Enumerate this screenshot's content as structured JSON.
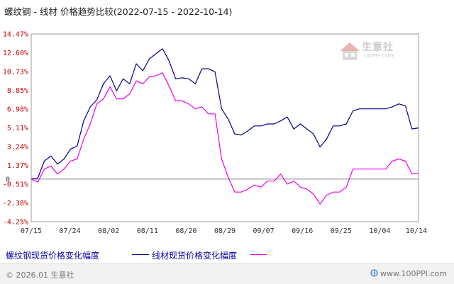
{
  "title": "螺纹钢 - 线材 价格趋势比较(2022-07-15 - 2022-10-14)",
  "watermark": {
    "text": "生意社",
    "url": "100PPI.COM"
  },
  "footer": {
    "copyright": "© 2026.01 生意社",
    "site": "www.100PPI.com"
  },
  "colors": {
    "series1": "#00008b",
    "series2": "#ee00ee",
    "axis_label": "#cc0000",
    "grid": "#c8c8c8",
    "zero": "#888888"
  },
  "chart_data": {
    "type": "line",
    "x": [
      "07/15",
      "07/18",
      "07/19",
      "07/20",
      "07/21",
      "07/22",
      "07/25",
      "07/26",
      "07/27",
      "07/28",
      "07/29",
      "08/01",
      "08/02",
      "08/03",
      "08/04",
      "08/05",
      "08/08",
      "08/09",
      "08/10",
      "08/11",
      "08/12",
      "08/15",
      "08/16",
      "08/17",
      "08/18",
      "08/19",
      "08/22",
      "08/23",
      "08/24",
      "08/25",
      "08/26",
      "08/29",
      "08/30",
      "08/31",
      "09/01",
      "09/02",
      "09/05",
      "09/06",
      "09/07",
      "09/08",
      "09/09",
      "09/13",
      "09/14",
      "09/15",
      "09/16",
      "09/19",
      "09/20",
      "09/21",
      "09/22",
      "09/23",
      "09/26",
      "09/27",
      "09/28",
      "09/29",
      "09/30",
      "10/10",
      "10/11",
      "10/12",
      "10/13",
      "10/14"
    ],
    "series": [
      {
        "name": "螺纹钢现货价格变化幅度",
        "color": "#00008b",
        "values": [
          0,
          0.1,
          1.8,
          2.3,
          1.5,
          2.0,
          3.0,
          3.3,
          5.8,
          7.2,
          7.9,
          9.5,
          10.3,
          8.8,
          10.0,
          9.5,
          11.5,
          10.8,
          12.0,
          12.5,
          13.0,
          11.8,
          10.0,
          10.1,
          10.0,
          9.5,
          11.0,
          11.0,
          10.7,
          7.0,
          6.0,
          4.5,
          4.4,
          4.8,
          5.3,
          5.3,
          5.5,
          5.5,
          5.8,
          6.2,
          5.0,
          5.5,
          5.0,
          4.5,
          3.2,
          4.0,
          5.3,
          5.3,
          5.5,
          6.8,
          7.0,
          7.0,
          7.0,
          7.0,
          7.0,
          7.2,
          7.5,
          7.3,
          5.0,
          5.1
        ]
      },
      {
        "name": "线材现货价格变化幅度",
        "color": "#ee00ee",
        "values": [
          0,
          -0.3,
          1.0,
          1.3,
          0.5,
          1.0,
          1.8,
          2.0,
          4.0,
          5.5,
          7.5,
          8.0,
          9.2,
          8.0,
          8.0,
          8.5,
          9.8,
          9.5,
          10.2,
          10.3,
          10.6,
          9.3,
          7.8,
          7.8,
          7.5,
          7.0,
          7.2,
          6.5,
          6.5,
          2.0,
          0.2,
          -1.3,
          -1.3,
          -1.0,
          -0.6,
          -0.8,
          -0.2,
          -0.2,
          0.5,
          -0.5,
          -0.2,
          -0.8,
          -1.0,
          -1.5,
          -2.5,
          -1.6,
          -1.3,
          -1.3,
          -0.8,
          1.0,
          1.0,
          1.0,
          1.0,
          1.0,
          1.0,
          1.8,
          2.0,
          1.8,
          0.5,
          0.6
        ]
      }
    ],
    "y_ticks": [
      "14.47%",
      "12.60%",
      "10.73%",
      "8.85%",
      "6.98%",
      "5.11%",
      "3.24%",
      "1.37%",
      "-0.51%",
      "-2.38%",
      "-4.25%"
    ],
    "y_tick_values": [
      14.47,
      12.6,
      10.73,
      8.85,
      6.98,
      5.11,
      3.24,
      1.37,
      -0.51,
      -2.38,
      -4.25
    ],
    "zero_label": "0",
    "x_ticks": [
      "07/15",
      "07/24",
      "08/02",
      "08/11",
      "08/20",
      "08/29",
      "09/07",
      "09/16",
      "09/25",
      "10/04",
      "10/14"
    ],
    "ylim": [
      -4.25,
      14.47
    ],
    "grid": true,
    "legend_position": "bottom"
  }
}
